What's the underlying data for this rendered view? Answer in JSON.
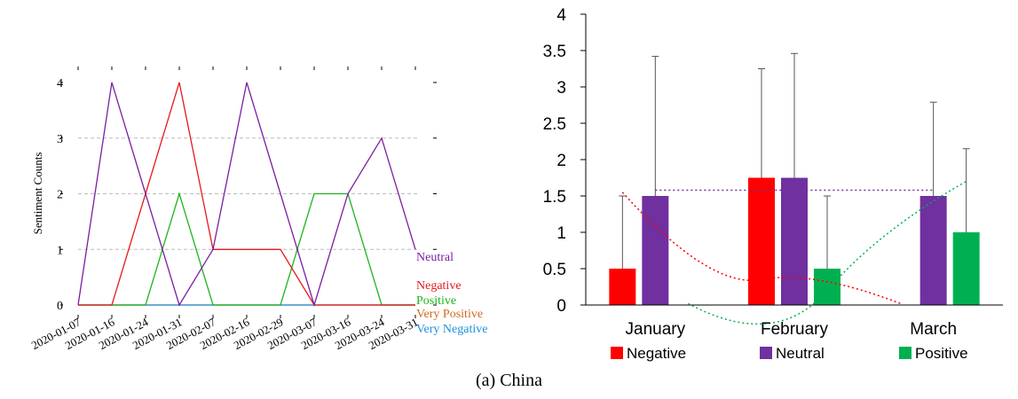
{
  "caption": "(a) China",
  "colors": {
    "neutral": "#7a1fa2",
    "negative": "#e6191b",
    "positive": "#1db41d",
    "very_positive": "#d2691e",
    "very_negative": "#1f8fe0",
    "bar_negative": "#ff0000",
    "bar_neutral": "#7030a0",
    "bar_positive": "#00b050"
  },
  "chart_data": [
    {
      "type": "line",
      "ylabel": "Sentiment Counts",
      "xlabel": "",
      "x": [
        "2020-01-07",
        "2020-01-16",
        "2020-01-24",
        "2020-01-31",
        "2020-02-07",
        "2020-02-16",
        "2020-02-29",
        "2020-03-07",
        "2020-03-16",
        "2020-03-24",
        "2020-03-31"
      ],
      "ylim": [
        0,
        4
      ],
      "yticks": [
        "0",
        "1",
        "2",
        "3",
        "4"
      ],
      "grid": true,
      "legend_placement": "right",
      "series": [
        {
          "name": "Neutral",
          "color": "#7a1fa2",
          "values": [
            0,
            4,
            2,
            0,
            1,
            4,
            2,
            0,
            2,
            3,
            1
          ]
        },
        {
          "name": "Negative",
          "color": "#e6191b",
          "values": [
            0,
            0,
            2,
            4,
            1,
            1,
            1,
            0,
            0,
            0,
            0
          ]
        },
        {
          "name": "Positive",
          "color": "#1db41d",
          "values": [
            0,
            0,
            0,
            2,
            0,
            0,
            0,
            2,
            2,
            0,
            0
          ]
        },
        {
          "name": "Very Positive",
          "color": "#d2691e",
          "values": [
            0,
            0,
            0,
            0,
            0,
            0,
            0,
            0,
            0,
            0,
            0
          ]
        },
        {
          "name": "Very Negative",
          "color": "#1f8fe0",
          "values": [
            0,
            0,
            0,
            0,
            0,
            0,
            0,
            0,
            0,
            0,
            0
          ]
        }
      ]
    },
    {
      "type": "bar",
      "categories": [
        "January",
        "February",
        "March"
      ],
      "ylim": [
        0,
        4
      ],
      "yticks": [
        "0",
        "0.5",
        "1",
        "1.5",
        "2",
        "2.5",
        "3",
        "3.5",
        "4"
      ],
      "legend_placement": "bottom",
      "series": [
        {
          "name": "Negative",
          "color": "#ff0000",
          "values": [
            0.5,
            1.75,
            null
          ],
          "error": [
            1.0,
            1.5,
            null
          ]
        },
        {
          "name": "Neutral",
          "color": "#7030a0",
          "values": [
            1.5,
            1.75,
            1.5
          ],
          "error": [
            1.92,
            1.71,
            1.29
          ]
        },
        {
          "name": "Positive",
          "color": "#00b050",
          "values": [
            null,
            0.5,
            1.0
          ],
          "error": [
            null,
            1.0,
            1.15
          ]
        }
      ],
      "trendlines": [
        {
          "series": "Neutral",
          "color": "#7030a0",
          "style": "dotted",
          "values": [
            1.58,
            1.58,
            1.58
          ]
        },
        {
          "series": "Negative",
          "color": "#ff0000",
          "style": "dotted",
          "values": [
            1.55,
            0.35,
            0.02
          ]
        },
        {
          "series": "Positive",
          "color": "#00b050",
          "style": "dotted",
          "values": [
            0.02,
            0.2,
            1.7
          ]
        }
      ]
    }
  ]
}
